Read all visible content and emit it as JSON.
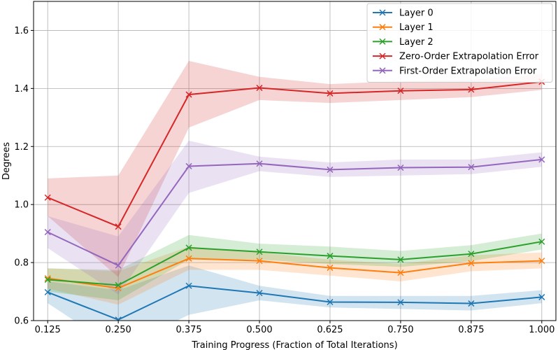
{
  "chart_data": {
    "type": "line",
    "title": "",
    "xlabel": "Training Progress (Fraction of Total Iterations)",
    "ylabel": "Degrees",
    "x": [
      0.125,
      0.25,
      0.375,
      0.5,
      0.625,
      0.75,
      0.875,
      1.0
    ],
    "x_tick_labels": [
      "0.125",
      "0.250",
      "0.375",
      "0.500",
      "0.625",
      "0.750",
      "0.875",
      "1.000"
    ],
    "y_ticks": [
      0.6,
      0.8,
      1.0,
      1.2,
      1.4,
      1.6
    ],
    "y_tick_labels": [
      "0.6",
      "0.8",
      "1.0",
      "1.2",
      "1.4",
      "1.6"
    ],
    "xlim": [
      0.1,
      1.025
    ],
    "ylim": [
      0.6,
      1.7
    ],
    "grid": true,
    "legend_position": "top-right",
    "series": [
      {
        "name": "Layer 0",
        "color": "#1f77b4",
        "values": [
          0.698,
          0.603,
          0.72,
          0.695,
          0.664,
          0.663,
          0.659,
          0.681
        ],
        "lower": [
          0.66,
          0.5,
          0.62,
          0.67,
          0.645,
          0.64,
          0.635,
          0.66
        ],
        "upper": [
          0.735,
          0.705,
          0.79,
          0.72,
          0.685,
          0.685,
          0.685,
          0.705
        ]
      },
      {
        "name": "Layer 1",
        "color": "#ff7f0e",
        "values": [
          0.746,
          0.712,
          0.814,
          0.806,
          0.782,
          0.765,
          0.798,
          0.806
        ],
        "lower": [
          0.71,
          0.655,
          0.775,
          0.775,
          0.755,
          0.735,
          0.77,
          0.78
        ],
        "upper": [
          0.78,
          0.77,
          0.855,
          0.835,
          0.81,
          0.795,
          0.825,
          0.835
        ]
      },
      {
        "name": "Layer 2",
        "color": "#2ca02c",
        "values": [
          0.741,
          0.722,
          0.851,
          0.837,
          0.823,
          0.81,
          0.83,
          0.872
        ],
        "lower": [
          0.7,
          0.67,
          0.81,
          0.81,
          0.795,
          0.785,
          0.805,
          0.845
        ],
        "upper": [
          0.78,
          0.775,
          0.895,
          0.865,
          0.855,
          0.84,
          0.86,
          0.9
        ]
      },
      {
        "name": "Zero-Order Extrapolation Error",
        "color": "#d62728",
        "values": [
          1.024,
          0.924,
          1.379,
          1.402,
          1.383,
          1.392,
          1.396,
          1.423
        ],
        "lower": [
          0.96,
          0.75,
          1.265,
          1.36,
          1.35,
          1.36,
          1.37,
          1.395
        ],
        "upper": [
          1.09,
          1.1,
          1.495,
          1.44,
          1.415,
          1.425,
          1.43,
          1.45
        ]
      },
      {
        "name": "First-Order Extrapolation Error",
        "color": "#9467bd",
        "values": [
          0.905,
          0.79,
          1.132,
          1.141,
          1.12,
          1.127,
          1.129,
          1.155
        ],
        "lower": [
          0.85,
          0.69,
          1.04,
          1.115,
          1.095,
          1.1,
          1.105,
          1.13
        ],
        "upper": [
          0.96,
          0.89,
          1.22,
          1.165,
          1.145,
          1.155,
          1.155,
          1.18
        ]
      }
    ]
  }
}
